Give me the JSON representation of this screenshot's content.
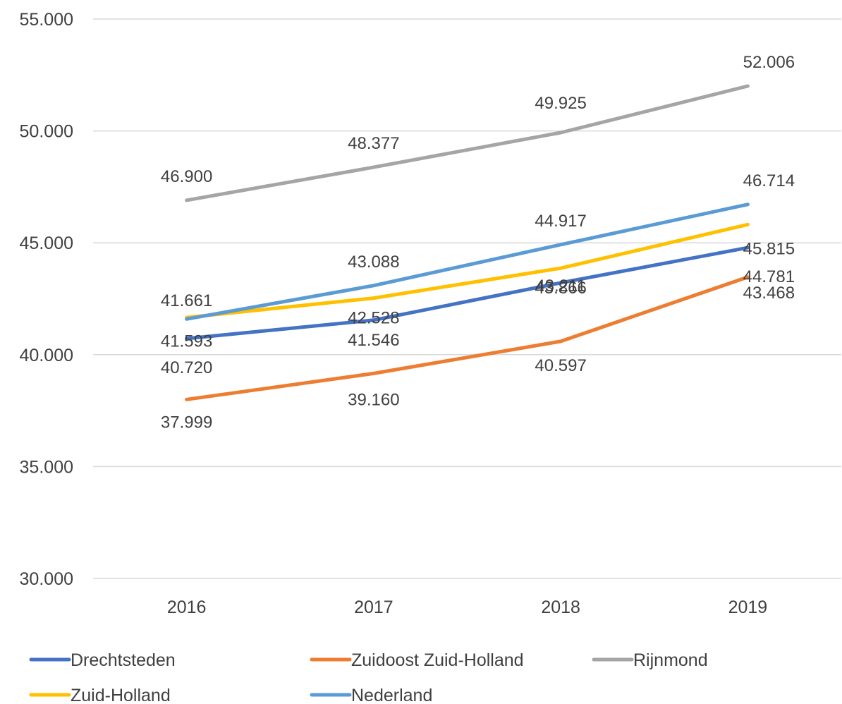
{
  "chart_data": {
    "type": "line",
    "title": "",
    "xlabel": "",
    "ylabel": "",
    "categories": [
      "2016",
      "2017",
      "2018",
      "2019"
    ],
    "ylim": [
      30000,
      55000
    ],
    "yticks": [
      30000,
      35000,
      40000,
      45000,
      50000,
      55000
    ],
    "ytick_labels": [
      "30.000",
      "35.000",
      "40.000",
      "45.000",
      "50.000",
      "55.000"
    ],
    "grid": true,
    "legend_position": "bottom",
    "series": [
      {
        "name": "Drechtsteden",
        "color": "#4472c4",
        "values": [
          40720,
          41546,
          43211,
          44781
        ],
        "labels": [
          "40.720",
          "41.546",
          "43.211",
          "44.781"
        ]
      },
      {
        "name": "Zuidoost Zuid-Holland",
        "color": "#ed7d31",
        "values": [
          37999,
          39160,
          40597,
          43468
        ],
        "labels": [
          "37.999",
          "39.160",
          "40.597",
          "43.468"
        ]
      },
      {
        "name": "Rijnmond",
        "color": "#a5a5a5",
        "values": [
          46900,
          48377,
          49925,
          52006
        ],
        "labels": [
          "46.900",
          "48.377",
          "49.925",
          "52.006"
        ]
      },
      {
        "name": "Zuid-Holland",
        "color": "#ffc000",
        "values": [
          41661,
          42528,
          43866,
          45815
        ],
        "labels": [
          "41.661",
          "42.528",
          "43.866",
          "45.815"
        ]
      },
      {
        "name": "Nederland",
        "color": "#5b9bd5",
        "values": [
          41593,
          43088,
          44917,
          46714
        ],
        "labels": [
          "41.593",
          "43.088",
          "44.917",
          "46.714"
        ]
      }
    ]
  }
}
